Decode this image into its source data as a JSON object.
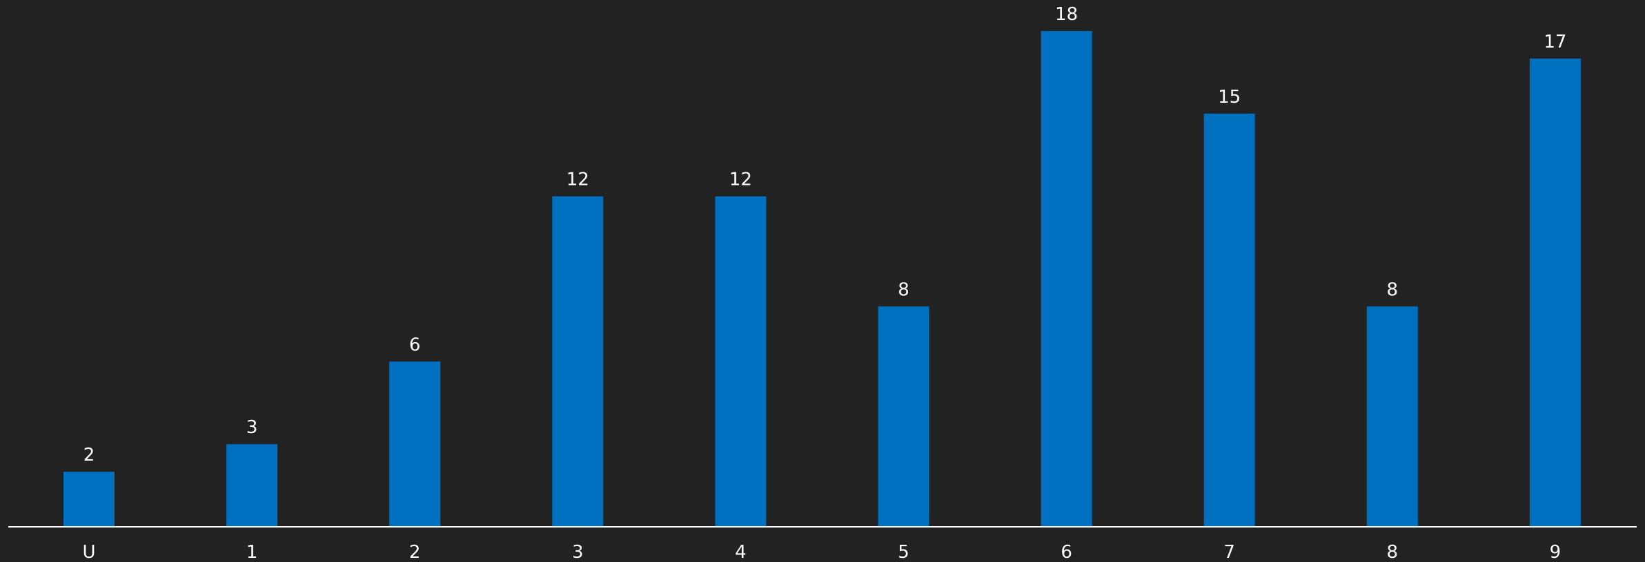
{
  "chart_data": {
    "type": "bar",
    "categories": [
      "U",
      "1",
      "2",
      "3",
      "4",
      "5",
      "6",
      "7",
      "8",
      "9"
    ],
    "values": [
      2,
      3,
      6,
      12,
      12,
      8,
      18,
      15,
      8,
      17
    ],
    "title": "",
    "xlabel": "",
    "ylabel": "",
    "ylim": [
      0,
      18
    ],
    "grid": false,
    "legend": "none",
    "data_labels": true
  },
  "colors": {
    "background": "#222222",
    "bar": "#0070C0",
    "axis": "#ffffff",
    "text": "#ffffff"
  }
}
